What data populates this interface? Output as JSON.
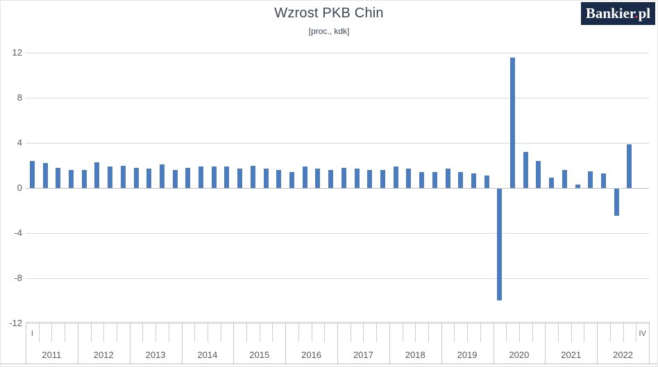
{
  "chart_data": {
    "type": "bar",
    "title": "Wzrost PKB Chin",
    "subtitle": "[proc., kdk]",
    "unit": "proc., kdk",
    "ylim": [
      -12,
      12
    ],
    "yticks": [
      12,
      8,
      4,
      0,
      -4,
      -8,
      -12
    ],
    "grid": true,
    "legend": false,
    "x_axis_quarter_labels": {
      "first": "I",
      "last": "IV"
    },
    "years": [
      {
        "year": "2011",
        "values": [
          2.4,
          2.2,
          1.8,
          1.6
        ]
      },
      {
        "year": "2012",
        "values": [
          1.6,
          2.3,
          1.9,
          2.0
        ]
      },
      {
        "year": "2013",
        "values": [
          1.8,
          1.7,
          2.1,
          1.6
        ]
      },
      {
        "year": "2014",
        "values": [
          1.8,
          1.9,
          1.9,
          1.9
        ]
      },
      {
        "year": "2015",
        "values": [
          1.7,
          2.0,
          1.7,
          1.6
        ]
      },
      {
        "year": "2016",
        "values": [
          1.4,
          1.9,
          1.7,
          1.6
        ]
      },
      {
        "year": "2017",
        "values": [
          1.8,
          1.7,
          1.6,
          1.6
        ]
      },
      {
        "year": "2018",
        "values": [
          1.9,
          1.7,
          1.4,
          1.4
        ]
      },
      {
        "year": "2019",
        "values": [
          1.7,
          1.4,
          1.3,
          1.1
        ]
      },
      {
        "year": "2020",
        "values": [
          -9.9,
          11.6,
          3.2,
          2.4
        ]
      },
      {
        "year": "2021",
        "values": [
          0.9,
          1.6,
          0.3,
          1.5
        ]
      },
      {
        "year": "2022",
        "values": [
          1.3,
          -2.4,
          3.9,
          null
        ]
      }
    ]
  },
  "logo": {
    "brand": "Bankier",
    "dot": ".",
    "tld": "pl",
    "bg_color": "#1a2b4a",
    "dot_color": "#e8333f"
  },
  "colors": {
    "bar": "#4a7cbe",
    "gridline": "#d9d9d9",
    "zero_line": "#c2c2c2",
    "tick": "#cfcfcf",
    "separator": "#c9c9c9",
    "axis_text": "#595959",
    "title_text": "#3e4656"
  }
}
